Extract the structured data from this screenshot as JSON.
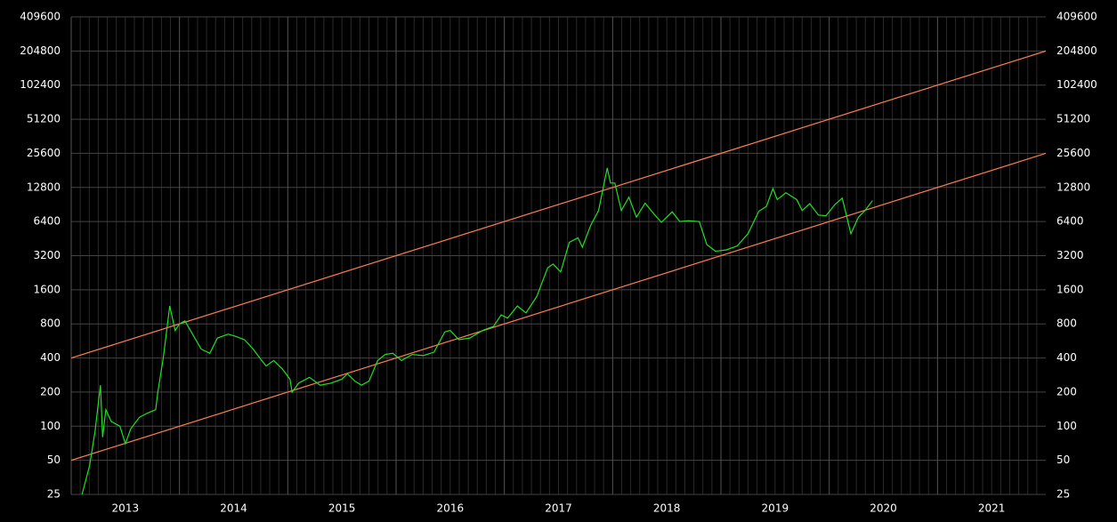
{
  "chart_data": {
    "type": "line",
    "log_y": true,
    "grid": true,
    "xlim": [
      2013,
      2022
    ],
    "xticks": [
      2013,
      2014,
      2015,
      2016,
      2017,
      2018,
      2019,
      2020,
      2021
    ],
    "ylim": [
      25,
      409600
    ],
    "yticks": [
      25,
      50,
      100,
      200,
      400,
      800,
      1600,
      3200,
      6400,
      12800,
      25600,
      51200,
      102400,
      204800,
      409600
    ],
    "series": [
      {
        "color": "#ff7f50",
        "x": [
          2013,
          2022
        ],
        "values": [
          400,
          204800
        ]
      },
      {
        "color": "#ff7f50",
        "x": [
          2013,
          2022
        ],
        "values": [
          50,
          25600
        ]
      },
      {
        "color": "#22e022",
        "x": [
          2013.1,
          2013.17,
          2013.22,
          2013.27,
          2013.29,
          2013.32,
          2013.37,
          2013.45,
          2013.5,
          2013.55,
          2013.63,
          2013.7,
          2013.78,
          2013.8,
          2013.85,
          2013.91,
          2013.96,
          2014.0,
          2014.05,
          2014.12,
          2014.2,
          2014.28,
          2014.35,
          2014.45,
          2014.52,
          2014.6,
          2014.68,
          2014.75,
          2014.8,
          2014.87,
          2014.95,
          2015.02,
          2015.04,
          2015.1,
          2015.2,
          2015.3,
          2015.4,
          2015.5,
          2015.55,
          2015.62,
          2015.68,
          2015.75,
          2015.83,
          2015.9,
          2015.97,
          2016.05,
          2016.15,
          2016.25,
          2016.35,
          2016.45,
          2016.5,
          2016.58,
          2016.68,
          2016.8,
          2016.9,
          2016.97,
          2017.03,
          2017.12,
          2017.2,
          2017.3,
          2017.4,
          2017.45,
          2017.52,
          2017.6,
          2017.68,
          2017.72,
          2017.8,
          2017.87,
          2017.95,
          2017.98,
          2018.02,
          2018.08,
          2018.15,
          2018.22,
          2018.3,
          2018.38,
          2018.45,
          2018.55,
          2018.62,
          2018.7,
          2018.8,
          2018.87,
          2018.95,
          2019.05,
          2019.15,
          2019.25,
          2019.35,
          2019.42,
          2019.48,
          2019.52,
          2019.6,
          2019.7,
          2019.75,
          2019.82,
          2019.9,
          2019.97,
          2020.05,
          2020.12,
          2020.2,
          2020.27,
          2020.33,
          2020.4
        ],
        "values": [
          25,
          45,
          90,
          230,
          80,
          140,
          110,
          100,
          70,
          95,
          120,
          130,
          140,
          200,
          400,
          1150,
          700,
          800,
          850,
          650,
          480,
          440,
          600,
          650,
          620,
          580,
          480,
          390,
          340,
          380,
          320,
          260,
          200,
          240,
          270,
          230,
          240,
          260,
          290,
          250,
          230,
          250,
          380,
          430,
          440,
          380,
          430,
          420,
          450,
          680,
          700,
          580,
          600,
          700,
          760,
          960,
          900,
          1150,
          1000,
          1400,
          2500,
          2700,
          2300,
          4200,
          4600,
          3800,
          6000,
          8000,
          19000,
          14000,
          14000,
          8000,
          10500,
          7000,
          9300,
          7500,
          6300,
          7800,
          6400,
          6500,
          6400,
          4000,
          3500,
          3600,
          3900,
          5000,
          7900,
          8700,
          12500,
          10000,
          11500,
          10000,
          8000,
          9200,
          7300,
          7200,
          9000,
          10300,
          5000,
          7000,
          8000,
          9800
        ]
      }
    ]
  }
}
